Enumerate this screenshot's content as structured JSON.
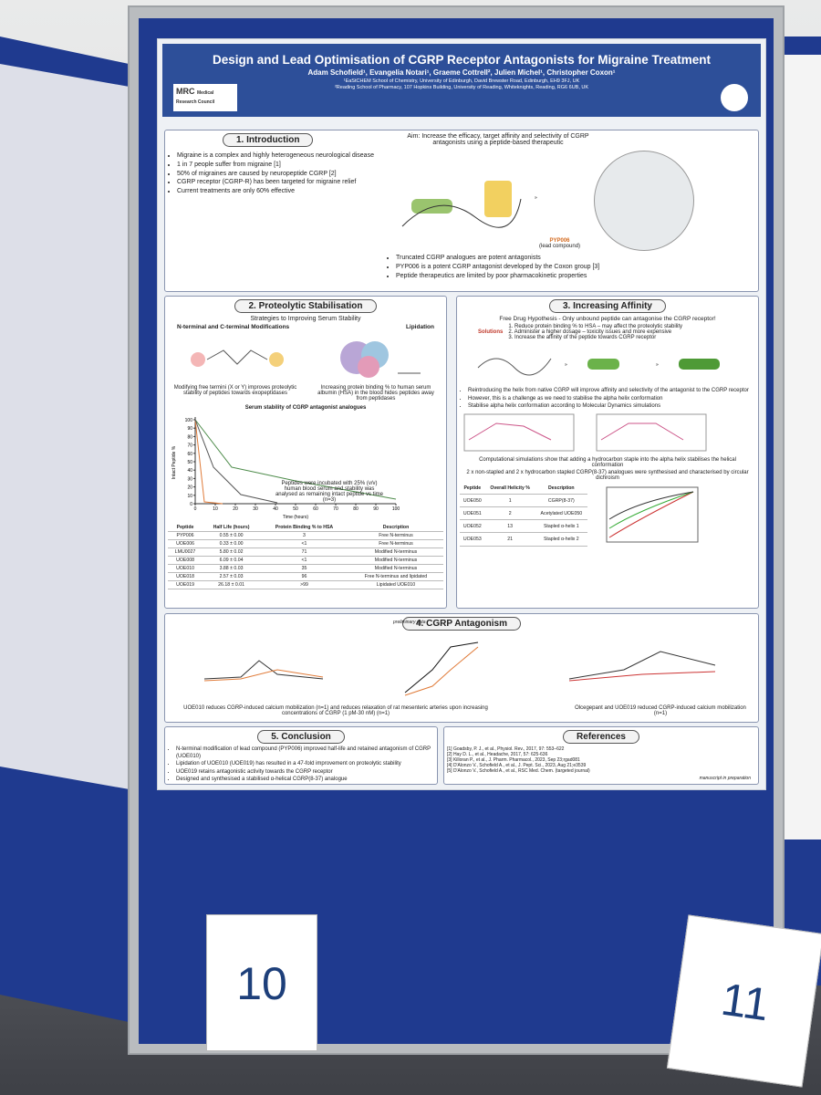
{
  "title": "Design and Lead Optimisation of CGRP Receptor Antagonists for Migraine Treatment",
  "authors": "Adam Schofield¹, Evangelia Notari¹, Graeme Cottrell², Julien Michel¹, Christopher Coxon¹",
  "affiliations": [
    "¹EaStCHEM School of Chemistry, University of Edinburgh, David Brewster Road, Edinburgh, EH9 3FJ, UK",
    "²Reading School of Pharmacy, 107 Hopkins Building, University of Reading, Whiteknights, Reading, RG6 6UB, UK"
  ],
  "logo": [
    "MRC",
    "Medical Research Council"
  ],
  "intro": {
    "heading": "1. Introduction",
    "bullets": [
      "Migraine is a complex and highly heterogeneous neurological disease",
      "1 in 7 people suffer from migraine [1]",
      "50% of migraines are caused by neuropeptide CGRP [2]",
      "CGRP receptor (CGRP-R) has been targeted for migraine relief",
      "Current treatments are only 60% effective"
    ],
    "aim": "Aim: Increase the efficacy, target affinity and selectivity of CGRP antagonists using a peptide-based therapeutic",
    "lead": "PYP006",
    "lead_note": "(lead compound)",
    "bullets2": [
      "Truncated CGRP analogues are potent antagonists",
      "PYP006 is a potent CGRP antagonist developed by the Coxon group [3]",
      "Peptide therapeutics are limited by poor pharmacokinetic properties"
    ]
  },
  "proteolytic": {
    "heading": "2. Proteolytic Stabilisation",
    "subtitle": "Strategies to Improving Serum Stability",
    "left_label": "N-terminal and C-terminal Modifications",
    "right_label": "Lipidation",
    "left_caption": "Modifying free termini (X or Y) improves proteolytic stability of peptides towards exopeptidases",
    "right_caption": "Increasing protein binding % to human serum albumin (HSA) in the blood hides peptides away from peptidases",
    "chart_title": "Serum stability of CGRP antagonist analogues",
    "chart_note": "Peptides were incubated with 25% (v/v) human blood serum and stability was analysed as remaining intact peptide vs time (n=3)",
    "x_label": "Time (hours)",
    "y_label": "Intact Peptide %",
    "xticks": [
      0,
      10,
      20,
      30,
      40,
      50,
      60,
      70,
      80,
      90,
      100
    ],
    "yticks": [
      0,
      10,
      20,
      30,
      40,
      50,
      60,
      70,
      80,
      90,
      100
    ],
    "table": {
      "header": [
        "Peptide",
        "Half Life (hours)",
        "Protein Binding % to HSA",
        "Description"
      ],
      "rows": [
        [
          "PYP006",
          "0.55 ± 0.00",
          "3",
          "Free N-terminus"
        ],
        [
          "UOE006",
          "0.33 ± 0.00",
          "<1",
          "Free N-terminus"
        ],
        [
          "LMU0027",
          "5.80 ± 0.02",
          "71",
          "Modified N-terminus"
        ],
        [
          "UOE008",
          "6.09 ± 0.04",
          "<1",
          "Modified N-terminus"
        ],
        [
          "UOE010",
          "3.88 ± 0.03",
          "35",
          "Modified N-terminus"
        ],
        [
          "UOE018",
          "2.57 ± 0.03",
          "96",
          "Free N-terminus and lipidated"
        ],
        [
          "UOE019",
          "26.18 ± 0.01",
          ">99",
          "Lipidated UOE010"
        ]
      ]
    }
  },
  "affinity": {
    "heading": "3. Increasing Affinity",
    "hypothesis": "Free Drug Hypothesis - Only unbound peptide can antagonise the CGRP receptor!",
    "solutions_label": "Solutions",
    "solutions": [
      "1. Reduce protein binding % to HSA – may affect the proteolytic stability",
      "2. Administer a higher dosage – toxicity issues and more expensive",
      "3. Increase the affinity of the peptide towards CGRP receptor"
    ],
    "bullets": [
      "Reintroducing the helix from native CGRP will improve affinity and selectivity of the antagonist to the CGRP receptor",
      "However, this is a challenge as we need to stabilise the alpha helix conformation",
      "Stabilise alpha helix conformation according to Molecular Dynamics simulations"
    ],
    "sim_caption": "Computational simulations show that adding a hydrocarbon staple into the alpha helix stabilises the helical conformation",
    "staple_text": "2 x non-stapled and 2 x hydrocarbon stapled CGRP(8-37) analogues were synthesised and characterised by circular dichroism",
    "table": {
      "header": [
        "Peptide",
        "Overall Helicity %",
        "Description"
      ],
      "rows": [
        [
          "UOE050",
          "1",
          "CGRP(8-37)"
        ],
        [
          "UOE051",
          "2",
          "Acetylated UOE050"
        ],
        [
          "UOE052",
          "13",
          "Stapled α-helix 1"
        ],
        [
          "UOE053",
          "21",
          "Stapled α-helix 2"
        ]
      ]
    }
  },
  "antagonism": {
    "heading": "4. CGRP Antagonism",
    "note": "preliminary data",
    "caption_left": "UOE010 reduces CGRP-induced calcium mobilization (n=1) and reduces relaxation of rat mesenteric arteries upon increasing concentrations of CGRP (1 pM-30 nM) (n=1)",
    "caption_right": "Olcegepant and UOE019 reduced CGRP-induced calcium mobilization (n=1)"
  },
  "conclusion": {
    "heading": "5. Conclusion",
    "bullets": [
      "N-terminal modification of lead compound (PYP006) improved half-life and retained antagonism of CGRP (UOE010)",
      "Lipidation of UOE010 (UOE019) has resulted in a 47-fold improvement on proteolytic stability",
      "UOE019 retains antagonistic activity towards the CGRP receptor",
      "Designed and synthesised a stabilised α-helical CGRP(8-37) analogue"
    ]
  },
  "references": {
    "heading": "References",
    "items": [
      "[1] Goadsby, P. J., et al., Physiol. Rev., 2017, 97: 553–622",
      "[2] Hay D. L., et al., Headache, 2017, 57: 625-636",
      "[3] Killoran P., et al., J. Pharm. Pharmacol., 2023, Sep 23;rgad081",
      "[4] D'Alonzo V., Schofield A., et al., J. Pept. Sci., 2023, Aug 21;e3539",
      "[5] D'Alonzo V., Schofield A., et al., RSC Med. Chem. (targeted journal)"
    ],
    "note": "manuscript in preparation"
  },
  "board_numbers": [
    "10",
    "11"
  ]
}
